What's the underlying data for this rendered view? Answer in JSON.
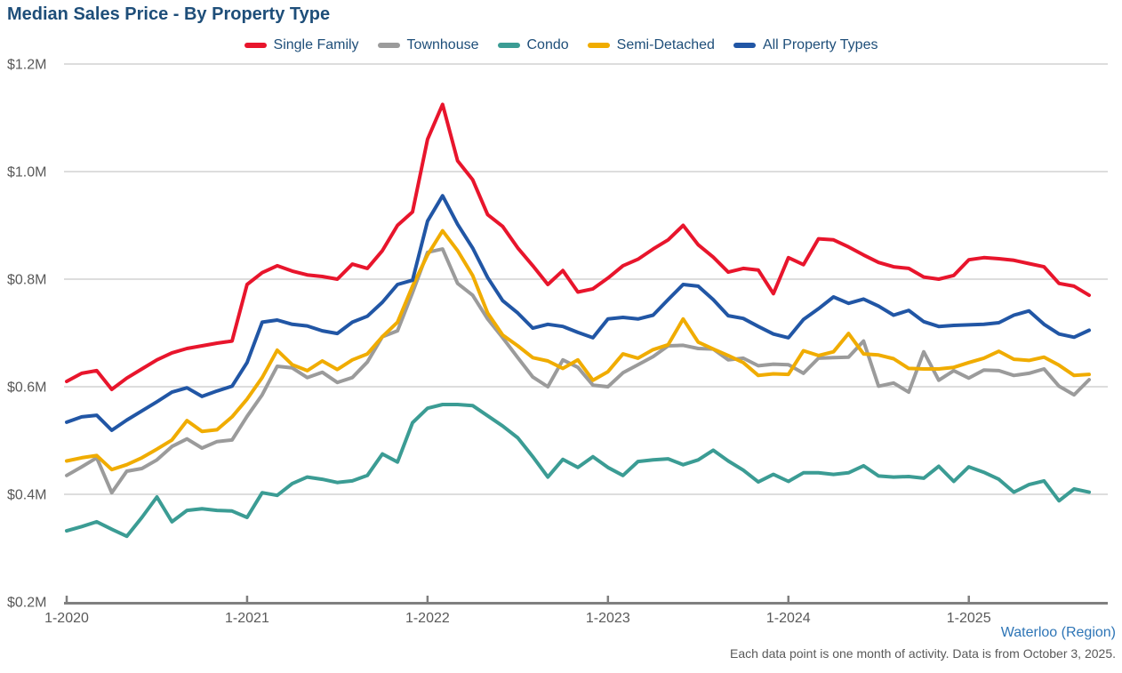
{
  "title": "Median Sales Price - By Property Type",
  "region_label": "Waterloo (Region)",
  "footnote": "Each data point is one month of activity. Data is from October 3, 2025.",
  "colors": {
    "title_text": "#1e4e79",
    "legend_text": "#1e4e79",
    "grid": "#d2d2d2",
    "axis": "#7f7f7f",
    "tick_text": "#595959",
    "region_link": "#2e75b6",
    "footnote_text": "#595959"
  },
  "chart_data": {
    "type": "line",
    "title": "Median Sales Price - By Property Type",
    "x_start": "1-2020",
    "x_end": "9-2025",
    "x_interval": "month",
    "ylim": [
      0.2,
      1.2
    ],
    "y_unit": "$M",
    "grid": "horizontal",
    "legend_position": "top-center",
    "y_ticks": [
      {
        "label": "$0.2M",
        "value": 0.2
      },
      {
        "label": "$0.4M",
        "value": 0.4
      },
      {
        "label": "$0.6M",
        "value": 0.6
      },
      {
        "label": "$0.8M",
        "value": 0.8
      },
      {
        "label": "$1.0M",
        "value": 1.0
      },
      {
        "label": "$1.2M",
        "value": 1.2
      }
    ],
    "x_ticks": [
      {
        "label": "1-2020",
        "month_index": 0
      },
      {
        "label": "1-2021",
        "month_index": 12
      },
      {
        "label": "1-2022",
        "month_index": 24
      },
      {
        "label": "1-2023",
        "month_index": 36
      },
      {
        "label": "1-2024",
        "month_index": 48
      },
      {
        "label": "1-2025",
        "month_index": 60
      }
    ],
    "series": [
      {
        "name": "Single Family",
        "color": "#e8152c",
        "z": 5,
        "values": [
          0.61,
          0.625,
          0.63,
          0.595,
          0.616,
          0.633,
          0.65,
          0.663,
          0.671,
          0.676,
          0.681,
          0.685,
          0.79,
          0.812,
          0.825,
          0.815,
          0.808,
          0.805,
          0.8,
          0.828,
          0.82,
          0.853,
          0.9,
          0.925,
          1.06,
          1.125,
          1.02,
          0.985,
          0.92,
          0.898,
          0.858,
          0.825,
          0.79,
          0.816,
          0.776,
          0.782,
          0.802,
          0.825,
          0.837,
          0.856,
          0.873,
          0.9,
          0.864,
          0.841,
          0.813,
          0.82,
          0.817,
          0.773,
          0.84,
          0.827,
          0.875,
          0.873,
          0.86,
          0.845,
          0.831,
          0.823,
          0.82,
          0.804,
          0.8,
          0.807,
          0.836,
          0.84,
          0.838,
          0.835,
          0.829,
          0.823,
          0.792,
          0.787,
          0.77
        ]
      },
      {
        "name": "Townhouse",
        "color": "#9b9b9b",
        "z": 1,
        "values": [
          0.435,
          0.451,
          0.468,
          0.403,
          0.443,
          0.448,
          0.464,
          0.489,
          0.503,
          0.486,
          0.498,
          0.501,
          0.545,
          0.585,
          0.638,
          0.635,
          0.617,
          0.627,
          0.608,
          0.617,
          0.646,
          0.693,
          0.704,
          0.775,
          0.85,
          0.856,
          0.792,
          0.77,
          0.726,
          0.691,
          0.654,
          0.618,
          0.6,
          0.65,
          0.636,
          0.603,
          0.6,
          0.626,
          0.641,
          0.656,
          0.676,
          0.677,
          0.671,
          0.67,
          0.65,
          0.653,
          0.639,
          0.642,
          0.641,
          0.625,
          0.653,
          0.654,
          0.655,
          0.685,
          0.601,
          0.607,
          0.59,
          0.665,
          0.612,
          0.63,
          0.616,
          0.631,
          0.63,
          0.621,
          0.625,
          0.633,
          0.601,
          0.585,
          0.613
        ]
      },
      {
        "name": "Condo",
        "color": "#3b9c94",
        "z": 2,
        "values": [
          0.332,
          0.34,
          0.349,
          0.335,
          0.322,
          0.357,
          0.395,
          0.349,
          0.37,
          0.373,
          0.37,
          0.369,
          0.357,
          0.403,
          0.398,
          0.42,
          0.432,
          0.428,
          0.422,
          0.425,
          0.435,
          0.475,
          0.46,
          0.533,
          0.56,
          0.567,
          0.567,
          0.565,
          0.546,
          0.527,
          0.505,
          0.47,
          0.432,
          0.465,
          0.45,
          0.47,
          0.45,
          0.435,
          0.461,
          0.464,
          0.466,
          0.455,
          0.464,
          0.482,
          0.462,
          0.445,
          0.423,
          0.437,
          0.424,
          0.44,
          0.44,
          0.437,
          0.44,
          0.453,
          0.434,
          0.432,
          0.433,
          0.43,
          0.452,
          0.424,
          0.451,
          0.441,
          0.428,
          0.404,
          0.418,
          0.425,
          0.388,
          0.41,
          0.404
        ]
      },
      {
        "name": "Semi-Detached",
        "color": "#f0ac00",
        "z": 3,
        "values": [
          0.462,
          0.468,
          0.472,
          0.446,
          0.455,
          0.468,
          0.484,
          0.501,
          0.537,
          0.517,
          0.52,
          0.544,
          0.577,
          0.617,
          0.668,
          0.641,
          0.63,
          0.648,
          0.632,
          0.65,
          0.661,
          0.693,
          0.72,
          0.787,
          0.845,
          0.89,
          0.853,
          0.807,
          0.737,
          0.696,
          0.676,
          0.654,
          0.648,
          0.634,
          0.65,
          0.612,
          0.628,
          0.661,
          0.653,
          0.669,
          0.678,
          0.726,
          0.683,
          0.67,
          0.658,
          0.645,
          0.621,
          0.624,
          0.623,
          0.667,
          0.658,
          0.665,
          0.699,
          0.661,
          0.659,
          0.652,
          0.634,
          0.633,
          0.633,
          0.636,
          0.645,
          0.653,
          0.666,
          0.651,
          0.649,
          0.655,
          0.64,
          0.621,
          0.623
        ]
      },
      {
        "name": "All Property Types",
        "color": "#2156a5",
        "z": 4,
        "values": [
          0.534,
          0.544,
          0.547,
          0.519,
          0.538,
          0.555,
          0.572,
          0.59,
          0.598,
          0.582,
          0.592,
          0.601,
          0.645,
          0.72,
          0.724,
          0.716,
          0.713,
          0.704,
          0.699,
          0.72,
          0.731,
          0.757,
          0.79,
          0.798,
          0.908,
          0.955,
          0.902,
          0.858,
          0.803,
          0.76,
          0.737,
          0.709,
          0.716,
          0.712,
          0.701,
          0.691,
          0.726,
          0.729,
          0.726,
          0.733,
          0.762,
          0.79,
          0.787,
          0.762,
          0.732,
          0.727,
          0.712,
          0.698,
          0.691,
          0.725,
          0.745,
          0.767,
          0.755,
          0.763,
          0.75,
          0.733,
          0.742,
          0.721,
          0.712,
          0.714,
          0.715,
          0.716,
          0.719,
          0.733,
          0.741,
          0.716,
          0.698,
          0.692,
          0.705
        ]
      }
    ]
  }
}
